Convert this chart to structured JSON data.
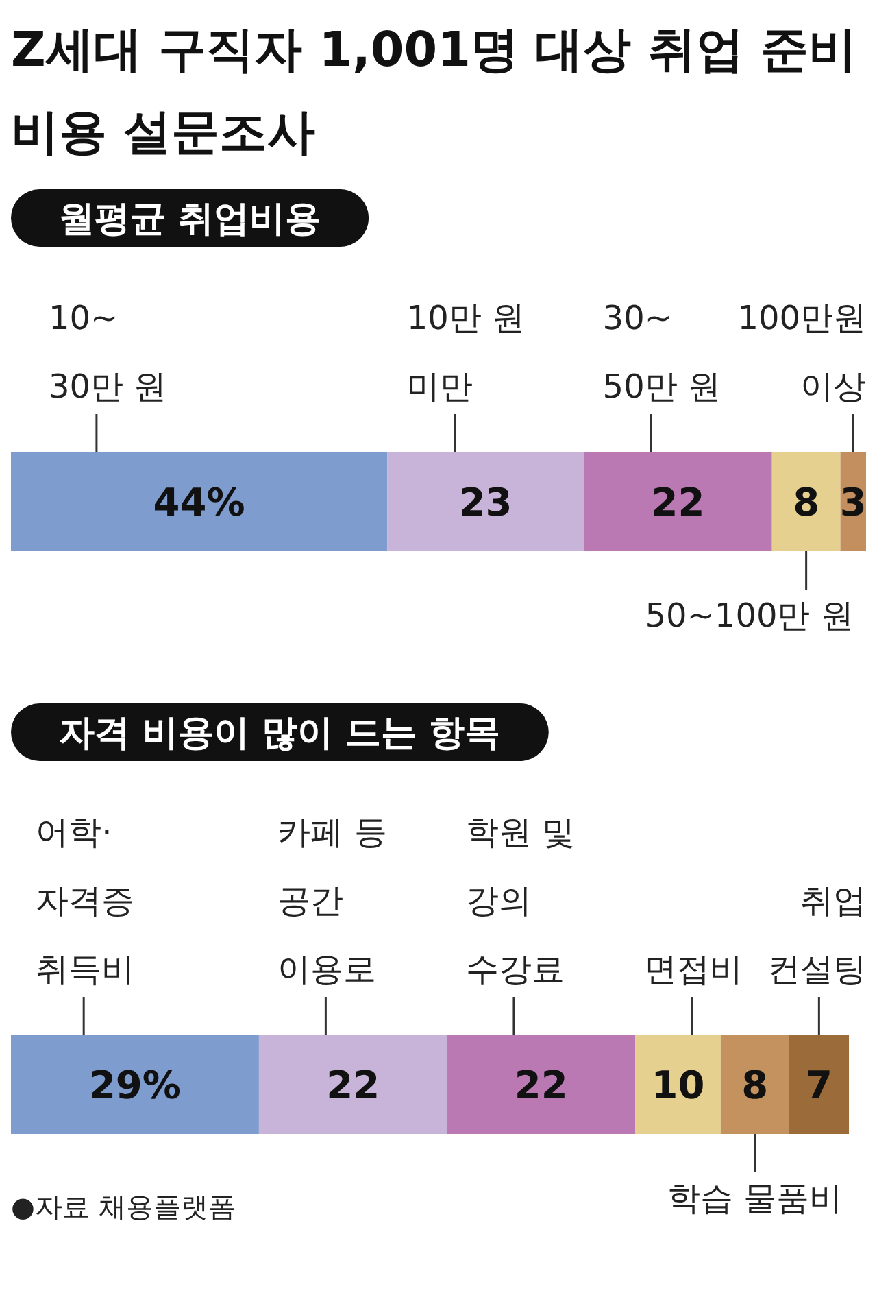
{
  "chart_data": [
    {
      "type": "bar",
      "orientation": "horizontal",
      "stacked": true,
      "title": "Z세대 구직자 1,001명 대상 취업 준비\n비용 설문조사",
      "subtitle": "월평균 취업비용",
      "categories": [
        null
      ],
      "xlim": [
        0,
        100
      ],
      "series": [
        {
          "name": "10~\n30만 원",
          "color": "#7f9ccf",
          "values": [
            44
          ],
          "value_labels": [
            "44%"
          ]
        },
        {
          "name": "10만 원\n미만",
          "color": "#c8b4d8",
          "values": [
            23
          ],
          "value_labels": [
            "23"
          ]
        },
        {
          "name": "30~\n50만 원",
          "color": "#bb79b4",
          "values": [
            22
          ],
          "value_labels": [
            "22"
          ]
        },
        {
          "name": "50~100만 원",
          "color": "#e5d08f",
          "values": [
            8
          ],
          "value_labels": [
            "8"
          ]
        },
        {
          "name": "100만원\n이상",
          "color": "#c48f5e",
          "values": [
            3
          ],
          "value_labels": [
            "3"
          ]
        }
      ]
    },
    {
      "type": "bar",
      "orientation": "horizontal",
      "stacked": true,
      "title": "자격 비용이 많이 드는 항목",
      "categories": [
        null
      ],
      "xlim": [
        0,
        100
      ],
      "annotations": [
        "●자료 채용플랫폼"
      ],
      "series": [
        {
          "name": "어학·\n자격증\n취득비",
          "color": "#7f9ccf",
          "values": [
            29
          ],
          "value_labels": [
            "29%"
          ]
        },
        {
          "name": "카페 등\n공간\n이용로",
          "color": "#c8b4d8",
          "values": [
            22
          ],
          "value_labels": [
            "22"
          ]
        },
        {
          "name": "학원 및\n강의\n수강료",
          "color": "#bb79b4",
          "values": [
            22
          ],
          "value_labels": [
            "22"
          ]
        },
        {
          "name": "면접비",
          "color": "#e5d08f",
          "values": [
            10
          ],
          "value_labels": [
            "10"
          ]
        },
        {
          "name": "학습 물품비",
          "color": "#c4925f",
          "values": [
            8
          ],
          "value_labels": [
            "8"
          ]
        },
        {
          "name": "취업\n컨설팅",
          "color": "#9c6b3a",
          "values": [
            7
          ],
          "value_labels": [
            "7"
          ]
        }
      ]
    }
  ]
}
